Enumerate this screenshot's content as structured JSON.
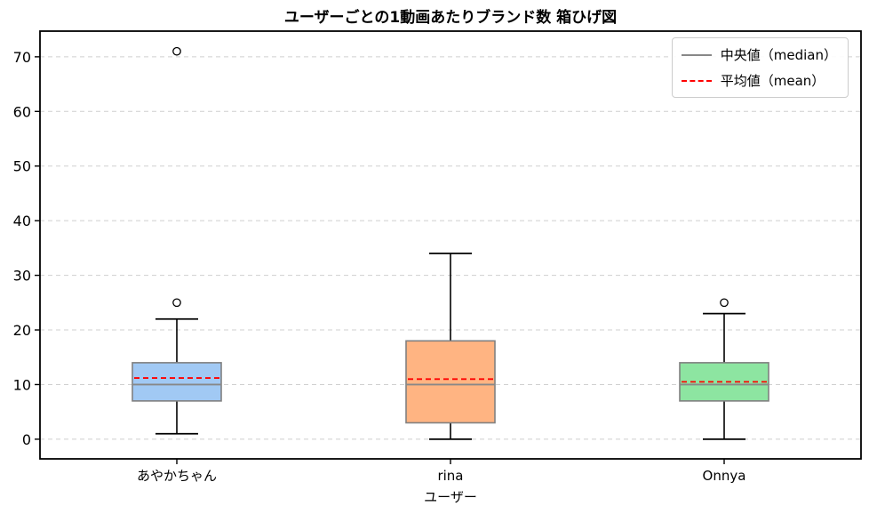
{
  "title": "ユーザーごとの1動画あたりブランド数 箱ひげ図",
  "legend": {
    "median_label": "中央値（median）",
    "mean_label": "平均値（mean）",
    "median_color": "#888888",
    "mean_color": "#ff0000"
  },
  "chart_data": {
    "type": "boxplot",
    "title": "ユーザーごとの1動画あたりブランド数 箱ひげ図",
    "xlabel": "ユーザー",
    "ylabel": "",
    "categories": [
      "あやかちゃん",
      "rina",
      "Onnya"
    ],
    "yticks": [
      0,
      10,
      20,
      30,
      40,
      50,
      60,
      70
    ],
    "ylim": [
      -3.6,
      74.7
    ],
    "grid": "horizontal-dashed",
    "grid_color": "#cfcfcf",
    "legend_position": "upper right",
    "box_edge_color": "#808080",
    "whisker_color": "#000000",
    "series": [
      {
        "name": "あやかちゃん",
        "whisker_low": 1,
        "q1": 7,
        "median": 10,
        "q3": 14,
        "whisker_high": 22,
        "mean": 11.2,
        "outliers": [
          25,
          71
        ],
        "fill": "#a1c9f4"
      },
      {
        "name": "rina",
        "whisker_low": 0,
        "q1": 3,
        "median": 10,
        "q3": 18,
        "whisker_high": 34,
        "mean": 11.0,
        "outliers": [],
        "fill": "#ffb482"
      },
      {
        "name": "Onnya",
        "whisker_low": 0,
        "q1": 7,
        "median": 10,
        "q3": 14,
        "whisker_high": 23,
        "mean": 10.5,
        "outliers": [
          25
        ],
        "fill": "#8de5a1"
      }
    ]
  }
}
